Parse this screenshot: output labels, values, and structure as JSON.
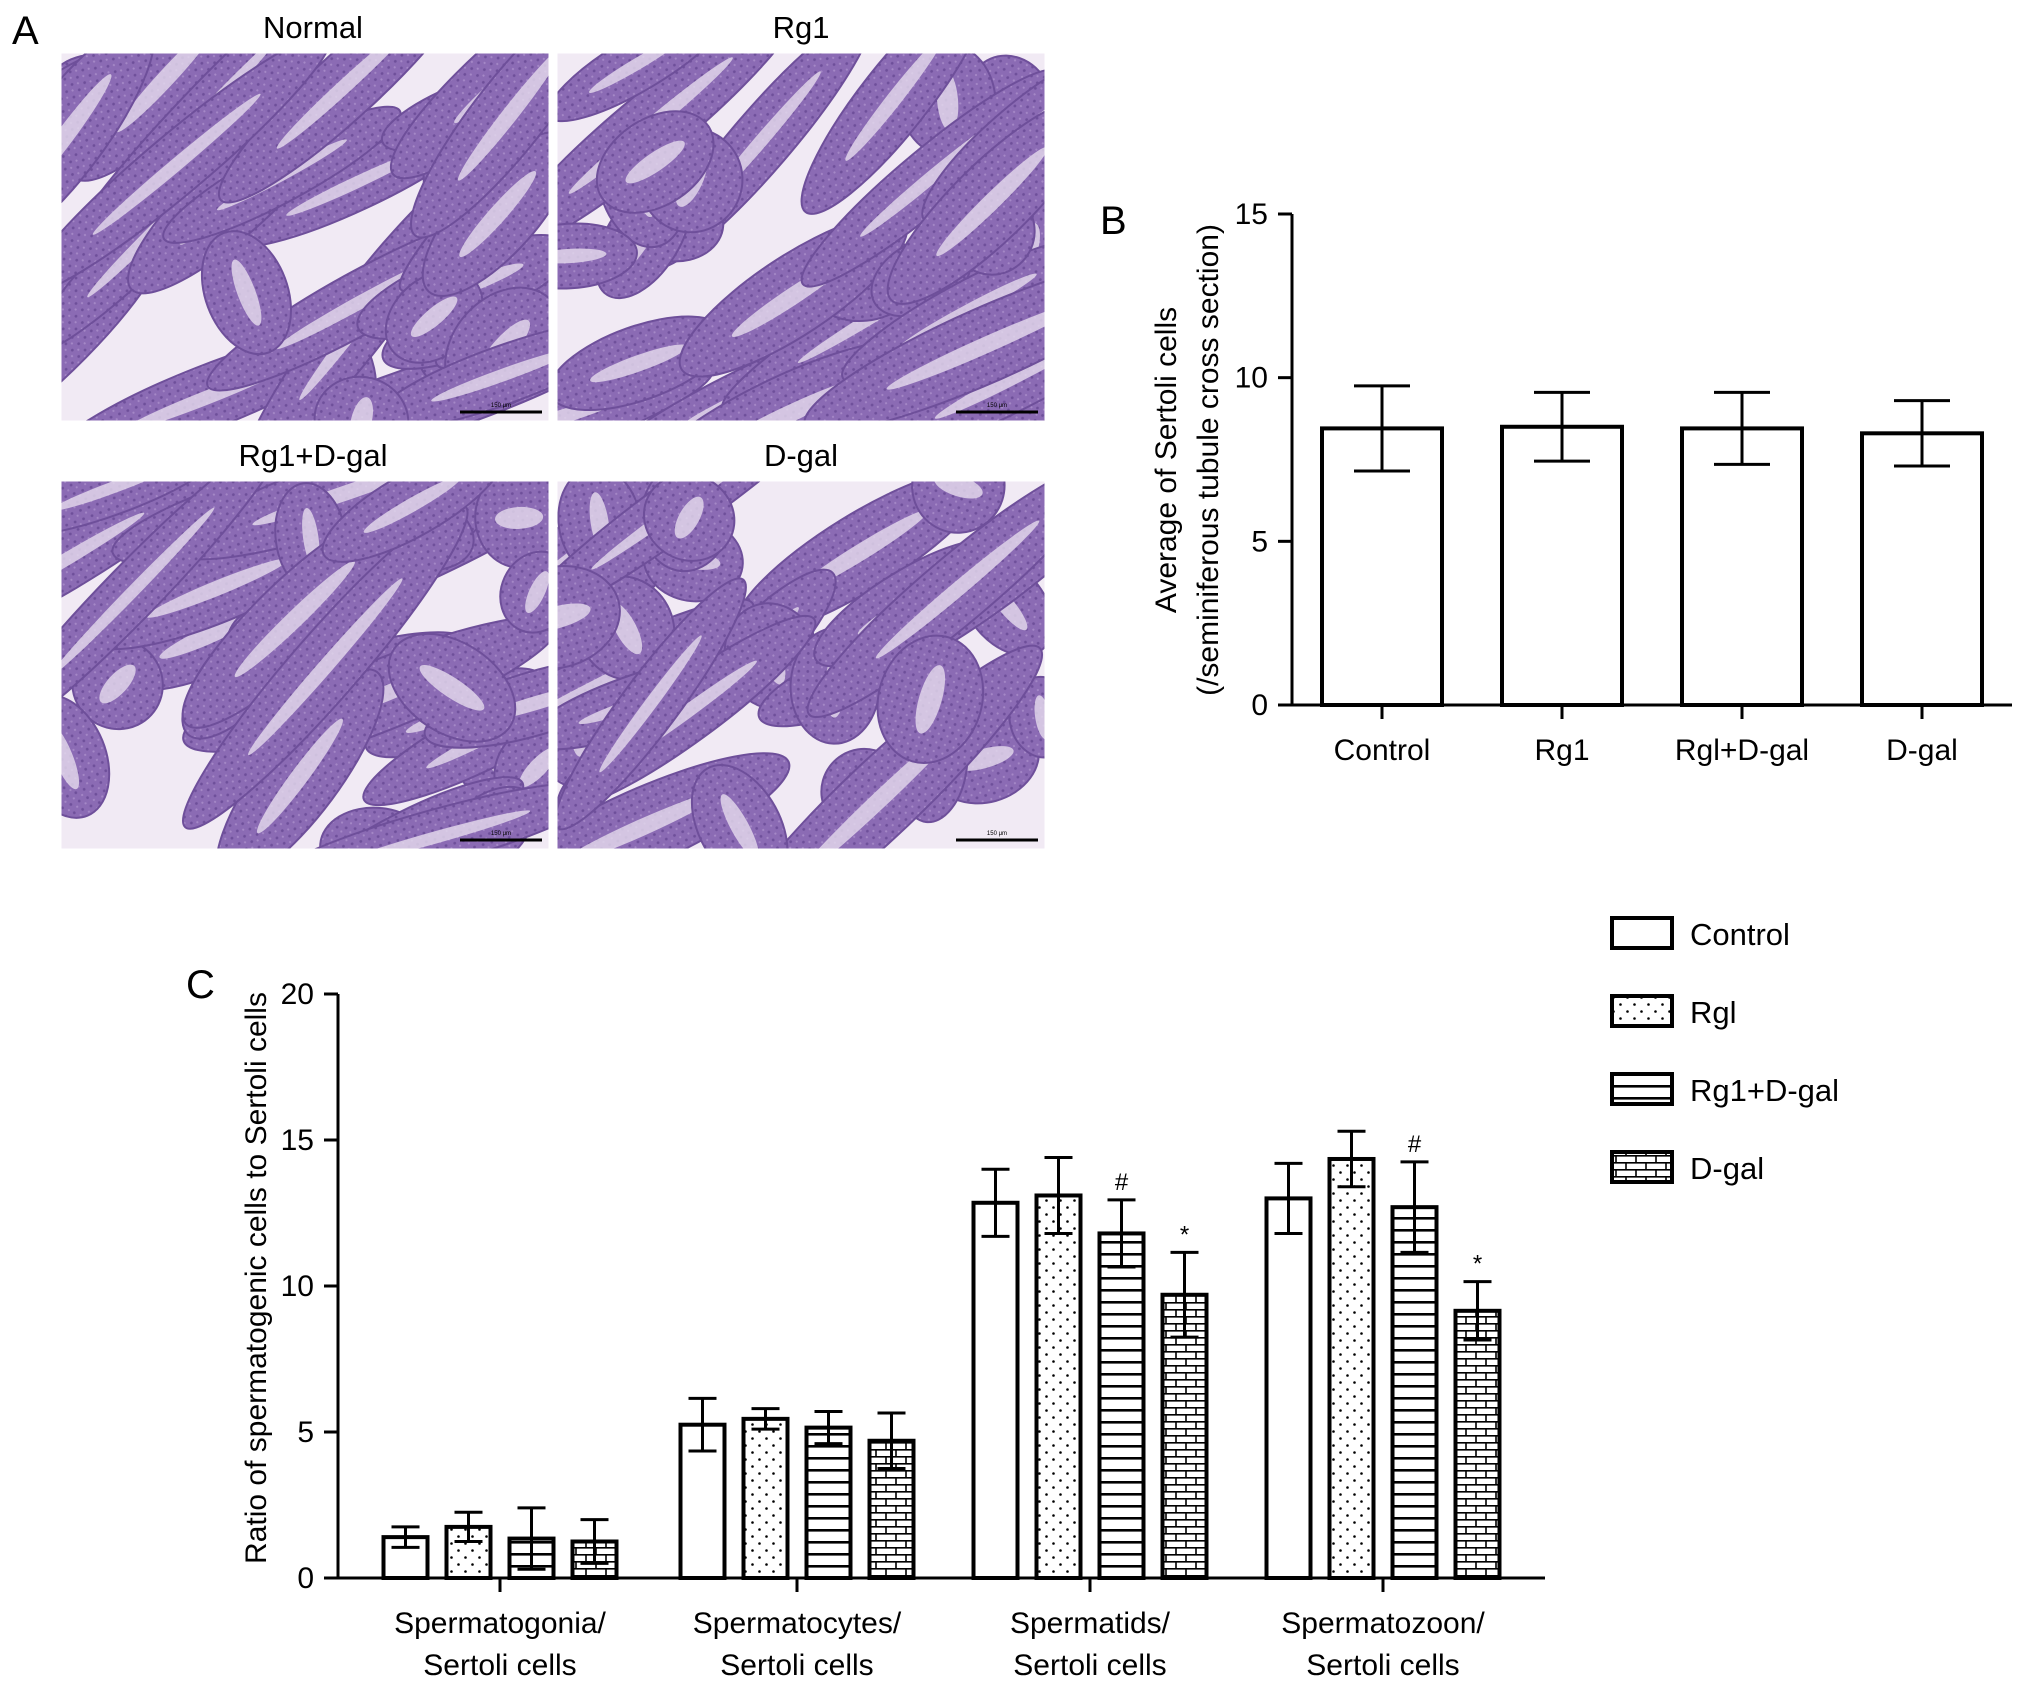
{
  "panel_labels": {
    "a": "A",
    "b": "B",
    "c": "C"
  },
  "micrographs": [
    {
      "title": "Normal",
      "scale_bar_label": "150 μm"
    },
    {
      "title": "Rg1",
      "scale_bar_label": "150 μm"
    },
    {
      "title": "Rg1+D-gal",
      "scale_bar_label": "150 μm"
    },
    {
      "title": "D-gal",
      "scale_bar_label": "150 μm"
    }
  ],
  "colors": {
    "stain_background": "#a88bc4",
    "tubule": "#8b6bb4",
    "tubule_dark": "#6e4f9a",
    "lumen": "#e6dcee",
    "interstitium": "#f1eaf4",
    "bars": "#000000"
  },
  "chart_data": [
    {
      "type": "bar",
      "ylabel": [
        "Average of  Sertoli cells",
        "(/seminiferous tubule cross section)"
      ],
      "categories": [
        "Control",
        "Rg1",
        "Rgl+D-gal",
        "D-gal"
      ],
      "values": [
        8.45,
        8.5,
        8.45,
        8.3
      ],
      "errors": [
        1.3,
        1.05,
        1.1,
        1.0
      ],
      "ylim": [
        0,
        15
      ],
      "yticks": [
        0,
        5,
        10,
        15
      ]
    },
    {
      "type": "bar",
      "ylabel": "Ratio of spermatogenic cells to Sertoli cells",
      "categories": [
        [
          "Spermatogonia/",
          "Sertoli cells"
        ],
        [
          "Spermatocytes/",
          "Sertoli cells"
        ],
        [
          "Spermatids/",
          "Sertoli cells"
        ],
        [
          "Spermatozoon/",
          "Sertoli cells"
        ]
      ],
      "series": [
        {
          "name": "Control",
          "pattern": "none",
          "values": [
            1.4,
            5.25,
            12.85,
            13.0
          ],
          "errors": [
            0.35,
            0.9,
            1.15,
            1.2
          ],
          "marks": [
            "",
            "",
            "",
            ""
          ]
        },
        {
          "name": "Rgl",
          "pattern": "dots",
          "values": [
            1.75,
            5.45,
            13.1,
            14.35
          ],
          "errors": [
            0.5,
            0.35,
            1.3,
            0.95
          ],
          "marks": [
            "",
            "",
            "",
            ""
          ]
        },
        {
          "name": "Rg1+D-gal",
          "pattern": "hlines",
          "values": [
            1.35,
            5.15,
            11.8,
            12.7
          ],
          "errors": [
            1.05,
            0.55,
            1.15,
            1.55
          ],
          "marks": [
            "",
            "",
            "#",
            "#"
          ]
        },
        {
          "name": "D-gal",
          "pattern": "bricks",
          "values": [
            1.25,
            4.7,
            9.7,
            9.15
          ],
          "errors": [
            0.75,
            0.95,
            1.45,
            1.0
          ],
          "marks": [
            "",
            "",
            "*",
            "*"
          ]
        }
      ],
      "ylim": [
        0,
        20
      ],
      "yticks": [
        0,
        5,
        10,
        15,
        20
      ]
    }
  ]
}
